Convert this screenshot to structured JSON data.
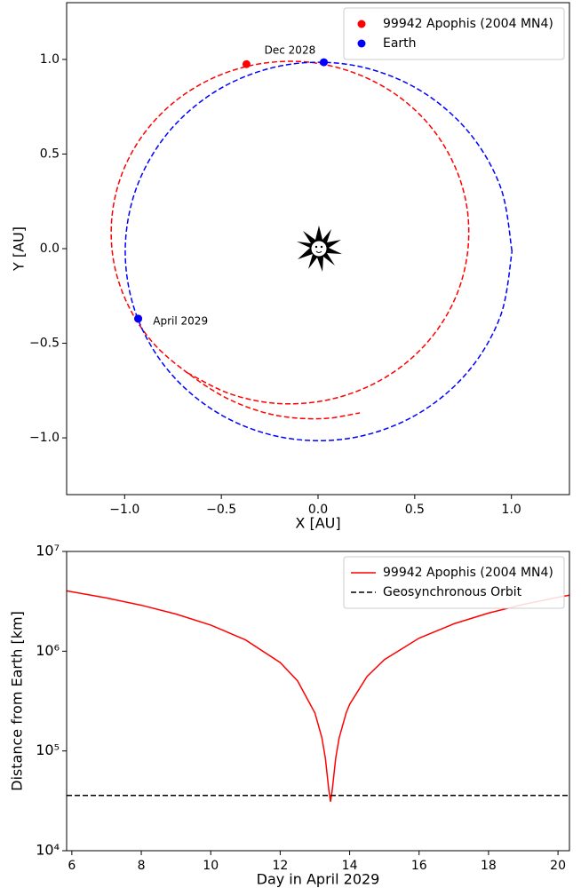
{
  "chart_data": [
    {
      "type": "scatter",
      "xlabel": "X [AU]",
      "ylabel": "Y [AU]",
      "xlim": [
        -1.3,
        1.3
      ],
      "ylim": [
        -1.3,
        1.3
      ],
      "xticks": [
        {
          "value": -1.0,
          "label": "−1.0"
        },
        {
          "value": -0.5,
          "label": "−0.5"
        },
        {
          "value": 0.0,
          "label": "0.0"
        },
        {
          "value": 0.5,
          "label": "0.5"
        },
        {
          "value": 1.0,
          "label": "1.0"
        }
      ],
      "yticks": [
        {
          "value": -1.0,
          "label": "−1.0"
        },
        {
          "value": -0.5,
          "label": "−0.5"
        },
        {
          "value": 0.0,
          "label": "0.0"
        },
        {
          "value": 0.5,
          "label": "0.5"
        },
        {
          "value": 1.0,
          "label": "1.0"
        }
      ],
      "legend": "upper right",
      "series": [
        {
          "name": "99942 Apophis (2004 MN4)",
          "color": "#ff0000",
          "x": [
            -0.37,
            -0.93
          ],
          "values": [
            0.975,
            -0.37
          ]
        },
        {
          "name": "Earth",
          "color": "#0000ff",
          "x": [
            0.03,
            -0.93
          ],
          "values": [
            0.985,
            -0.37
          ]
        }
      ],
      "orbits": [
        {
          "color": "#ff0000",
          "linestyle": "dashed",
          "x": [
            -0.676,
            -0.461,
            -0.226,
            0.016,
            0.246,
            0.45,
            0.613,
            0.724,
            0.776,
            0.766,
            0.693,
            0.564,
            0.386,
            0.171,
            -0.064,
            -0.306,
            -0.536,
            -0.74,
            -0.903,
            -1.014,
            -1.066,
            -1.056,
            -0.983,
            -0.854,
            -0.676,
            -0.461,
            -0.226,
            0.016,
            0.216
          ],
          "values": [
            -0.656,
            -0.765,
            -0.817,
            -0.806,
            -0.735,
            -0.608,
            -0.434,
            -0.225,
            0.006,
            0.242,
            0.467,
            0.667,
            0.826,
            0.935,
            0.987,
            0.976,
            0.905,
            0.778,
            0.604,
            0.395,
            0.164,
            -0.072,
            -0.297,
            -0.497,
            -0.656,
            -0.796,
            -0.879,
            -0.899,
            -0.868
          ]
        },
        {
          "color": "#0000ff",
          "linestyle": "dashed",
          "x": [
            1.003,
            0.943,
            0.769,
            0.503,
            0.177,
            -0.171,
            -0.497,
            -0.763,
            -0.937,
            -0.997,
            -0.937,
            -0.763,
            -0.497,
            -0.171,
            0.177,
            0.503,
            0.769,
            0.943,
            1.003
          ],
          "values": [
            -0.015,
            0.327,
            0.628,
            0.851,
            0.97,
            0.97,
            0.851,
            0.628,
            0.327,
            -0.015,
            -0.357,
            -0.658,
            -0.881,
            -1.0,
            -1.0,
            -0.881,
            -0.658,
            -0.357,
            -0.015
          ]
        }
      ],
      "annotations": [
        {
          "text": "Dec 2028",
          "x": -0.145,
          "y": 1.047
        },
        {
          "text": "April 2029",
          "x": -0.853,
          "y": -0.384
        }
      ]
    },
    {
      "type": "line",
      "xlabel": "Day in April 2029",
      "ylabel": "Distance from Earth [km]",
      "xlim": [
        5.85,
        20.33
      ],
      "ylim": [
        10000,
        10000000
      ],
      "log_y": true,
      "xticks": [
        6,
        8,
        10,
        12,
        14,
        16,
        18,
        20
      ],
      "yticks": [
        {
          "value": 10000,
          "label": "10⁴"
        },
        {
          "value": 100000,
          "label": "10⁵"
        },
        {
          "value": 1000000,
          "label": "10⁶"
        },
        {
          "value": 10000000,
          "label": "10⁷"
        }
      ],
      "legend": "upper right",
      "series": [
        {
          "name": "99942 Apophis (2004 MN4)",
          "color": "#ff0000",
          "linestyle": "solid",
          "x": [
            5.85,
            7,
            8,
            9,
            10,
            11,
            12,
            12.5,
            13,
            13.2,
            13.3,
            13.4,
            13.45,
            13.5,
            13.6,
            13.7,
            13.9,
            14,
            14.5,
            15,
            16,
            17,
            18,
            19,
            20,
            20.33
          ],
          "values": [
            4028000,
            3418500,
            2888500,
            2358500,
            1828500,
            1298500,
            769100,
            504500,
            240500,
            136100,
            85300,
            40800,
            31000,
            40800,
            85300,
            136100,
            240500,
            293100,
            557400,
            822100,
            1351500,
            1881500,
            2411500,
            2941500,
            3471500,
            3646500
          ]
        },
        {
          "name": "Geosynchronous Orbit",
          "color": "#000000",
          "linestyle": "dashed",
          "x": [
            5.85,
            20.33
          ],
          "values": [
            35786,
            35786
          ]
        }
      ]
    }
  ]
}
